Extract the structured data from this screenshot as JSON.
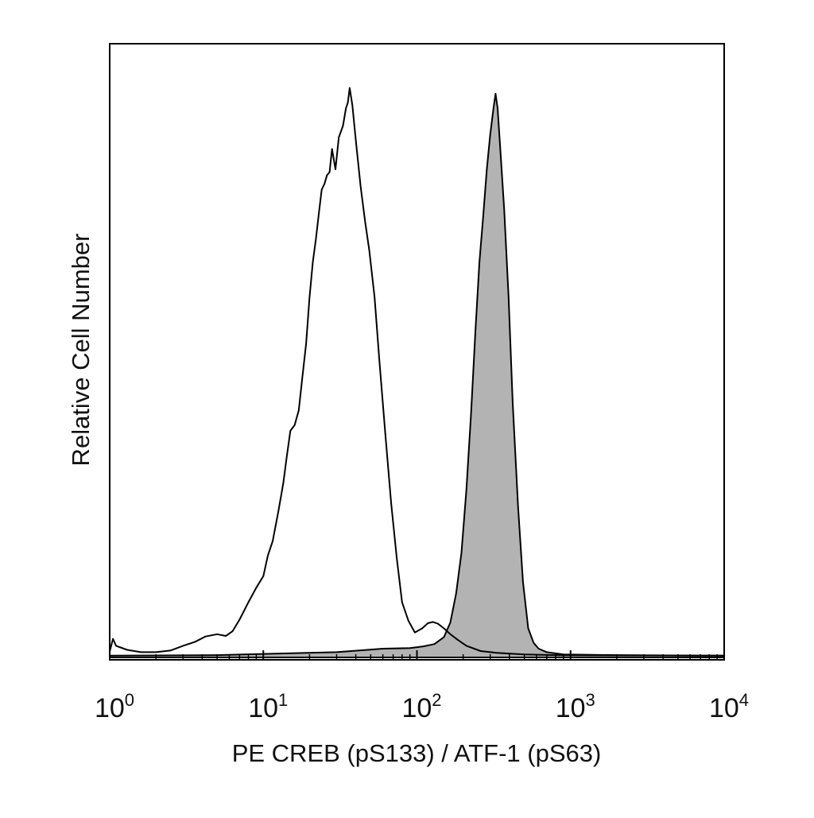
{
  "chart_data": {
    "type": "area",
    "x_scale": "log",
    "xlim": [
      1,
      10000
    ],
    "ylim": [
      0,
      100
    ],
    "grid": false,
    "legend": "none",
    "xlabel": "PE CREB (pS133) / ATF-1 (pS63)",
    "ylabel": "Relative Cell Number",
    "x_ticks": [
      {
        "value": 1,
        "base": "10",
        "exp": "0"
      },
      {
        "value": 10,
        "base": "10",
        "exp": "1"
      },
      {
        "value": 100,
        "base": "10",
        "exp": "2"
      },
      {
        "value": 1000,
        "base": "10",
        "exp": "3"
      },
      {
        "value": 10000,
        "base": "10",
        "exp": "4"
      }
    ],
    "series": [
      {
        "style": "open",
        "stroke": "#000000",
        "fill": "none",
        "points": [
          [
            1.0,
            1.0
          ],
          [
            1.05,
            3.2
          ],
          [
            1.1,
            2.0
          ],
          [
            1.3,
            1.3
          ],
          [
            1.6,
            0.9
          ],
          [
            2.0,
            0.9
          ],
          [
            2.5,
            1.2
          ],
          [
            3.0,
            2.0
          ],
          [
            3.6,
            2.7
          ],
          [
            4.2,
            3.6
          ],
          [
            5.0,
            4.0
          ],
          [
            5.7,
            3.7
          ],
          [
            6.3,
            4.5
          ],
          [
            7.0,
            6.5
          ],
          [
            8.0,
            9.5
          ],
          [
            9.0,
            12.0
          ],
          [
            10.0,
            14.0
          ],
          [
            10.7,
            17.5
          ],
          [
            11.5,
            20.0
          ],
          [
            12.5,
            25.0
          ],
          [
            13.5,
            30.0
          ],
          [
            14.2,
            34.5
          ],
          [
            15.0,
            39.0
          ],
          [
            16.0,
            40.0
          ],
          [
            17.0,
            42.5
          ],
          [
            18.0,
            48.5
          ],
          [
            19.0,
            54.0
          ],
          [
            20.0,
            62.0
          ],
          [
            21.0,
            68.0
          ],
          [
            22.0,
            72.0
          ],
          [
            23.0,
            76.5
          ],
          [
            24.0,
            80.5
          ],
          [
            25.0,
            81.5
          ],
          [
            26.0,
            83.0
          ],
          [
            27.0,
            83.5
          ],
          [
            28.0,
            87.5
          ],
          [
            29.5,
            84.0
          ],
          [
            31.0,
            89.5
          ],
          [
            33.0,
            91.5
          ],
          [
            34.5,
            94.5
          ],
          [
            35.5,
            95.5
          ],
          [
            36.5,
            98.0
          ],
          [
            38.0,
            95.0
          ],
          [
            40.0,
            89.0
          ],
          [
            43.0,
            81.0
          ],
          [
            46.0,
            75.0
          ],
          [
            49.0,
            70.0
          ],
          [
            53.0,
            62.0
          ],
          [
            57.0,
            51.0
          ],
          [
            62.0,
            39.0
          ],
          [
            68.0,
            26.5
          ],
          [
            74.0,
            17.0
          ],
          [
            80.0,
            9.5
          ],
          [
            88.0,
            6.3
          ],
          [
            97.0,
            4.3
          ],
          [
            108.0,
            5.0
          ],
          [
            118.0,
            5.9
          ],
          [
            127.0,
            6.1
          ],
          [
            137.0,
            5.8
          ],
          [
            150.0,
            5.0
          ],
          [
            165.0,
            4.0
          ],
          [
            185.0,
            3.0
          ],
          [
            210.0,
            2.0
          ],
          [
            260.0,
            1.1
          ],
          [
            330.0,
            0.8
          ],
          [
            500.0,
            0.5
          ],
          [
            800.0,
            0.4
          ],
          [
            2000.0,
            0.35
          ],
          [
            10000.0,
            0.3
          ]
        ]
      },
      {
        "style": "filled",
        "stroke": "#000000",
        "fill": "#b3b3b3",
        "points": [
          [
            1.0,
            0.3
          ],
          [
            5.0,
            0.4
          ],
          [
            10.0,
            0.6
          ],
          [
            30.0,
            0.9
          ],
          [
            60.0,
            1.5
          ],
          [
            90.0,
            1.6
          ],
          [
            110.0,
            1.9
          ],
          [
            130.0,
            2.3
          ],
          [
            150.0,
            3.5
          ],
          [
            165.0,
            6.0
          ],
          [
            180.0,
            11.0
          ],
          [
            195.0,
            18.0
          ],
          [
            210.0,
            29.0
          ],
          [
            225.0,
            42.0
          ],
          [
            240.0,
            56.0
          ],
          [
            255.0,
            68.0
          ],
          [
            270.0,
            76.0
          ],
          [
            285.0,
            84.0
          ],
          [
            300.0,
            90.0
          ],
          [
            315.0,
            94.5
          ],
          [
            325.0,
            97.0
          ],
          [
            335.0,
            94.5
          ],
          [
            350.0,
            87.0
          ],
          [
            370.0,
            77.0
          ],
          [
            395.0,
            62.0
          ],
          [
            420.0,
            44.0
          ],
          [
            455.0,
            26.0
          ],
          [
            490.0,
            13.0
          ],
          [
            530.0,
            5.0
          ],
          [
            575.0,
            2.5
          ],
          [
            620.0,
            1.5
          ],
          [
            700.0,
            0.9
          ],
          [
            900.0,
            0.5
          ],
          [
            2000.0,
            0.4
          ],
          [
            10000.0,
            0.3
          ]
        ]
      }
    ]
  }
}
